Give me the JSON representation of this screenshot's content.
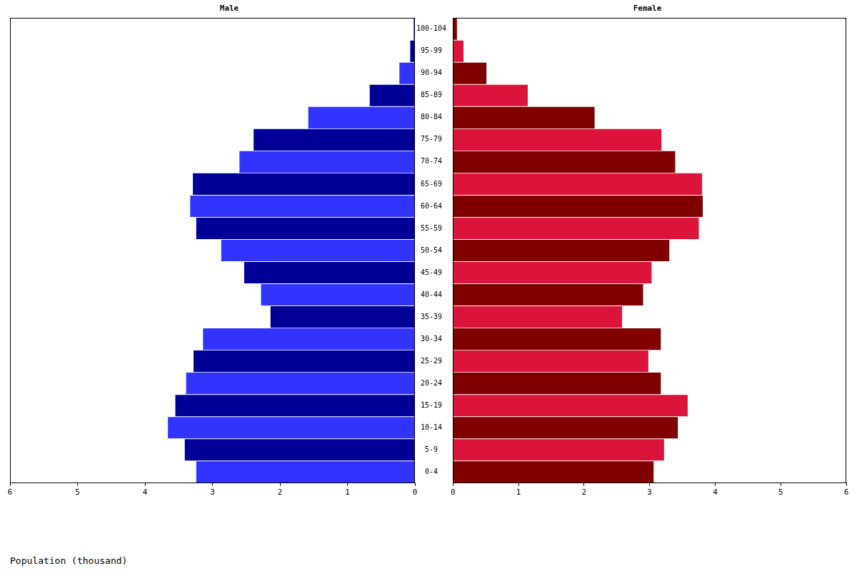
{
  "chart_data": [
    {
      "type": "bar",
      "orientation": "horizontal",
      "title": "Male",
      "categories": [
        "0-4",
        "5-9",
        "10-14",
        "15-19",
        "20-24",
        "25-29",
        "30-34",
        "35-39",
        "40-44",
        "45-49",
        "50-54",
        "55-59",
        "60-64",
        "65-69",
        "70-74",
        "75-79",
        "80-84",
        "85-89",
        "90-94",
        "95-99",
        "100-104"
      ],
      "values": [
        3.24,
        3.41,
        3.66,
        3.55,
        3.39,
        3.28,
        3.14,
        2.14,
        2.28,
        2.53,
        2.87,
        3.24,
        3.33,
        3.29,
        2.6,
        2.39,
        1.58,
        0.67,
        0.23,
        0.07,
        0.02
      ],
      "colors": [
        "#3333ff",
        "#000099",
        "#3333ff",
        "#000099",
        "#3333ff",
        "#000099",
        "#3333ff",
        "#000099",
        "#3333ff",
        "#000099",
        "#3333ff",
        "#000099",
        "#3333ff",
        "#000099",
        "#3333ff",
        "#000099",
        "#3333ff",
        "#000099",
        "#3333ff",
        "#000099",
        "#3333ff"
      ],
      "xlim": [
        0,
        6
      ],
      "xticks": [
        0,
        1,
        2,
        3,
        4,
        5,
        6
      ],
      "xlabel": "Population (thousand)",
      "grid": false
    },
    {
      "type": "bar",
      "orientation": "horizontal",
      "title": "Female",
      "categories": [
        "0-4",
        "5-9",
        "10-14",
        "15-19",
        "20-24",
        "25-29",
        "30-34",
        "35-39",
        "40-44",
        "45-49",
        "50-54",
        "55-59",
        "60-64",
        "65-69",
        "70-74",
        "75-79",
        "80-84",
        "85-89",
        "90-94",
        "95-99",
        "100-104"
      ],
      "values": [
        3.06,
        3.22,
        3.43,
        3.58,
        3.17,
        2.98,
        3.17,
        2.58,
        2.9,
        3.03,
        3.3,
        3.75,
        3.81,
        3.8,
        3.39,
        3.18,
        2.16,
        1.14,
        0.51,
        0.16,
        0.06
      ],
      "colors": [
        "#800000",
        "#dc143c",
        "#800000",
        "#dc143c",
        "#800000",
        "#dc143c",
        "#800000",
        "#dc143c",
        "#800000",
        "#dc143c",
        "#800000",
        "#dc143c",
        "#800000",
        "#dc143c",
        "#800000",
        "#dc143c",
        "#800000",
        "#dc143c",
        "#800000",
        "#dc143c",
        "#800000"
      ],
      "xlim": [
        0,
        6
      ],
      "xticks": [
        0,
        1,
        2,
        3,
        4,
        5,
        6
      ],
      "grid": false
    }
  ]
}
